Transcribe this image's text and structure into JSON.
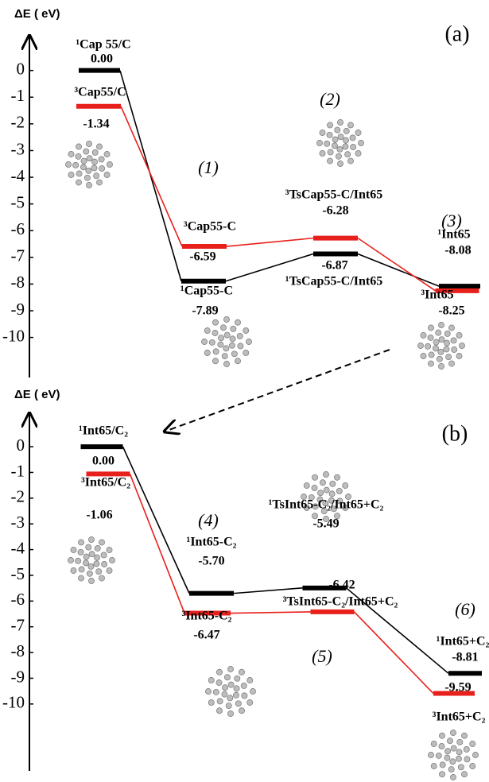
{
  "chart_data": [
    {
      "type": "energy",
      "panel_label": "(a)",
      "ylabel": "ΔE ( eV)",
      "ylim": [
        -11.5,
        1.3
      ],
      "yticks": [
        0,
        -1,
        -2,
        -3,
        -4,
        -5,
        -6,
        -7,
        -8,
        -9,
        -10
      ],
      "annotations": [
        "(1)",
        "(2)",
        "(3)"
      ],
      "series": [
        {
          "color": "#000000",
          "values": [
            0,
            -7.89,
            -6.87,
            -8.08
          ],
          "value_labels": [
            "0.00",
            "-7.89",
            "-6.87",
            "-8.08"
          ],
          "labels": [
            "¹Cap 55/C",
            "¹Cap55-C",
            "¹TsCap55-C/Int65",
            "¹Int65"
          ]
        },
        {
          "color": "#e8201c",
          "values": [
            -1.34,
            -6.59,
            -6.28,
            -8.25
          ],
          "value_labels": [
            "-1.34",
            "-6.59",
            "-6.28",
            "-8.25"
          ],
          "labels": [
            "³Cap55/C",
            "³Cap55-C",
            "³TsCap55-C/Int65",
            "³Int65"
          ]
        }
      ]
    },
    {
      "type": "energy",
      "panel_label": "(b)",
      "ylabel": "ΔE ( eV)",
      "ylim": [
        -12.6,
        1.3
      ],
      "yticks": [
        0,
        -1,
        -2,
        -3,
        -4,
        -5,
        -6,
        -7,
        -8,
        -9,
        -10
      ],
      "annotations": [
        "(4)",
        "(5)",
        "(6)"
      ],
      "series": [
        {
          "color": "#000000",
          "values": [
            0,
            -5.7,
            -5.49,
            -8.81
          ],
          "value_labels": [
            "0.00",
            "-5.70",
            "-5.49",
            "-8.81"
          ],
          "labels": [
            "¹Int65/C₂",
            "¹Int65-C₂",
            "¹TsInt65-C₂/Int65+C₂",
            "¹Int65+C₂"
          ]
        },
        {
          "color": "#e8201c",
          "values": [
            -1.06,
            -6.47,
            -6.42,
            -9.59
          ],
          "value_labels": [
            "-1.06",
            "-6.47",
            "-6.42",
            "-9.59"
          ],
          "labels": [
            "³Int65/C₂",
            "³Int65-C₂",
            "³TsInt65-C₂/Int65+C₂",
            "³Int65+C₂"
          ]
        }
      ]
    }
  ]
}
